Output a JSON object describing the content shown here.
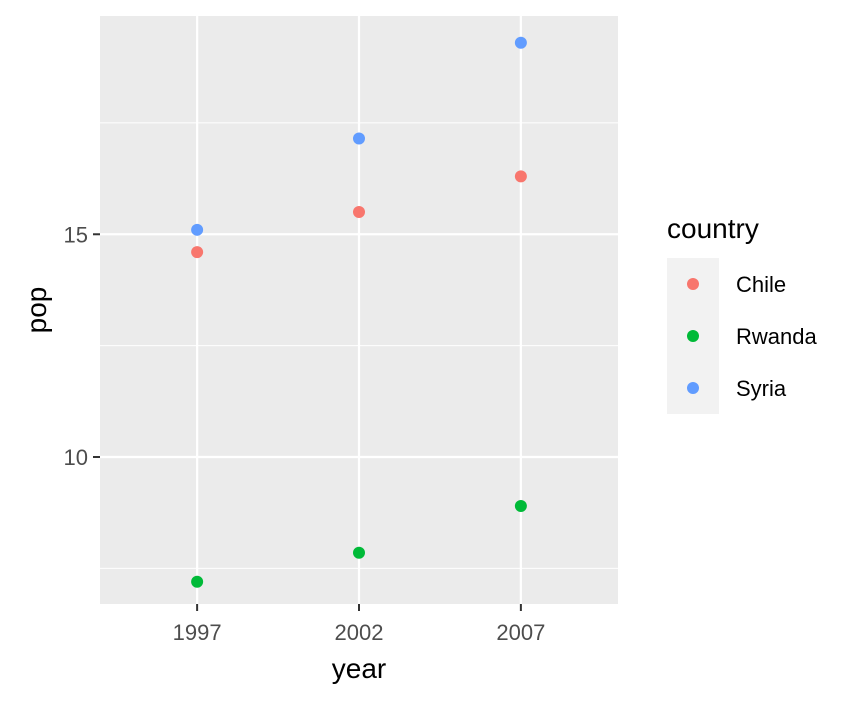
{
  "chart_data": {
    "type": "scatter",
    "title": "",
    "xlabel": "year",
    "ylabel": "pop",
    "x": [
      1997,
      2002,
      2007
    ],
    "x_ticks": [
      "1997",
      "2002",
      "2007"
    ],
    "xlim": [
      1994,
      2010
    ],
    "y_ticks": [
      10,
      15
    ],
    "ylim": [
      6.7,
      19.9
    ],
    "grid": true,
    "legend": {
      "title": "country",
      "position": "right"
    },
    "series": [
      {
        "name": "Chile",
        "color": "#F8766D",
        "values": [
          14.6,
          15.5,
          16.3
        ]
      },
      {
        "name": "Rwanda",
        "color": "#00BA38",
        "values": [
          7.2,
          7.85,
          8.9
        ]
      },
      {
        "name": "Syria",
        "color": "#619CFF",
        "values": [
          15.1,
          17.15,
          19.3
        ]
      }
    ]
  }
}
